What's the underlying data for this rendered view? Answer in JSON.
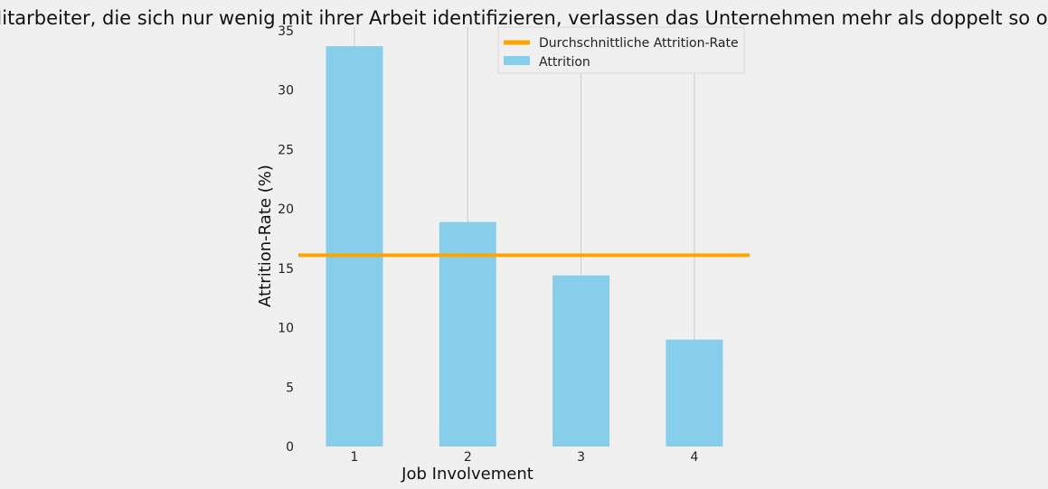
{
  "chart_data": {
    "type": "bar",
    "title": "Mitarbeiter, die sich nur wenig mit ihrer Arbeit identifizieren, verlassen das Unternehmen mehr als doppelt so oft",
    "xlabel": "Job Involvement",
    "ylabel": "Attrition-Rate (%)",
    "categories": [
      "1",
      "2",
      "3",
      "4"
    ],
    "series": [
      {
        "name": "Attrition",
        "values": [
          33.7,
          18.9,
          14.4,
          9.0
        ],
        "color": "#87ceeb"
      }
    ],
    "reference_line": {
      "name": "Durchschnittliche Attrition-Rate",
      "value": 16.1,
      "color": "#ffa500"
    },
    "ylim": [
      0,
      35
    ],
    "yticks": [
      0,
      5,
      10,
      15,
      20,
      25,
      30,
      35
    ],
    "grid": "x",
    "legend": "top-right"
  }
}
